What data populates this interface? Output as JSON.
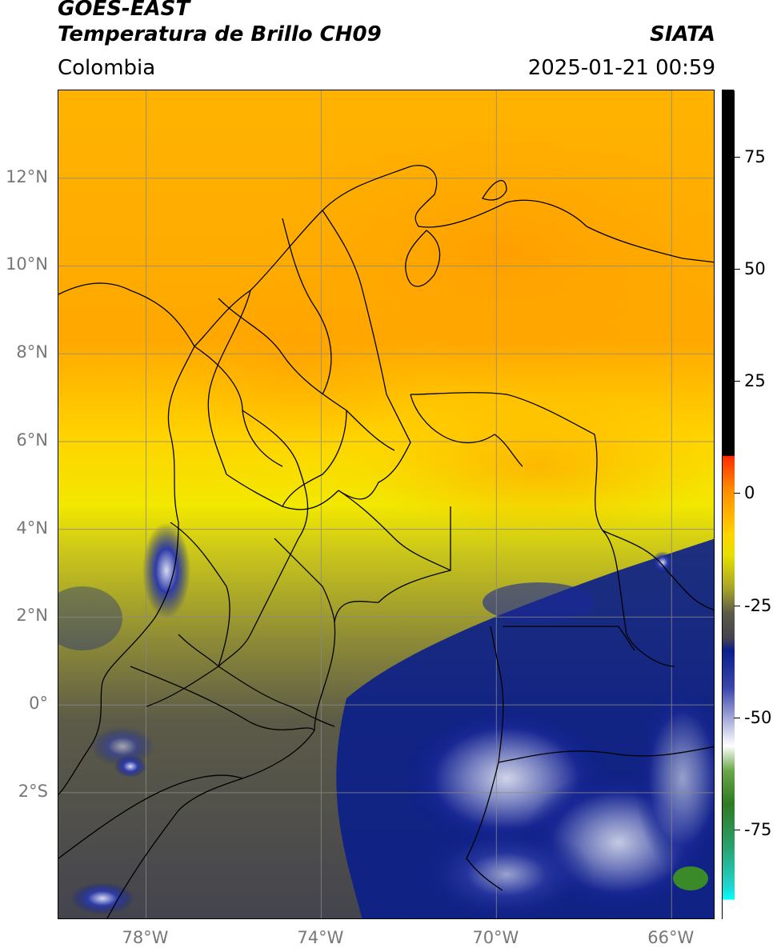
{
  "header": {
    "title_line1": "GOES-EAST",
    "title_line2": "Temperatura de Brillo CH09",
    "region": "Colombia",
    "brand": "SIATA",
    "datetime": "2025-01-21 00:59"
  },
  "map": {
    "lat_labels": [
      "12°N",
      "10°N",
      "8°N",
      "6°N",
      "4°N",
      "2°N",
      "0°",
      "2°S"
    ],
    "lon_labels": [
      "78°W",
      "74°W",
      "70°W",
      "66°W"
    ],
    "lat_values": [
      12,
      10,
      8,
      6,
      4,
      2,
      0,
      -2
    ],
    "lon_values": [
      -78,
      -74,
      -70,
      -66
    ],
    "extent": {
      "lon_min": -80,
      "lon_max": -65,
      "lat_min": -4.9,
      "lat_max": 14
    },
    "grid_color": "#888888",
    "border_color": "#000000",
    "cloud_colors": {
      "warm": "#ffa500",
      "mild": "#ffd700",
      "olive": "#a3a32a",
      "gray": "#4a4a52",
      "cold_blue": "#0a1e8a",
      "coldest_white": "#e8ecf6",
      "green": "#3a8a2a"
    }
  },
  "colorbar": {
    "labels": [
      "75",
      "50",
      "25",
      "0",
      "-25",
      "-50",
      "-75"
    ],
    "values": [
      75,
      50,
      25,
      0,
      -25,
      -50,
      -75
    ],
    "min": -95,
    "max": 90
  }
}
